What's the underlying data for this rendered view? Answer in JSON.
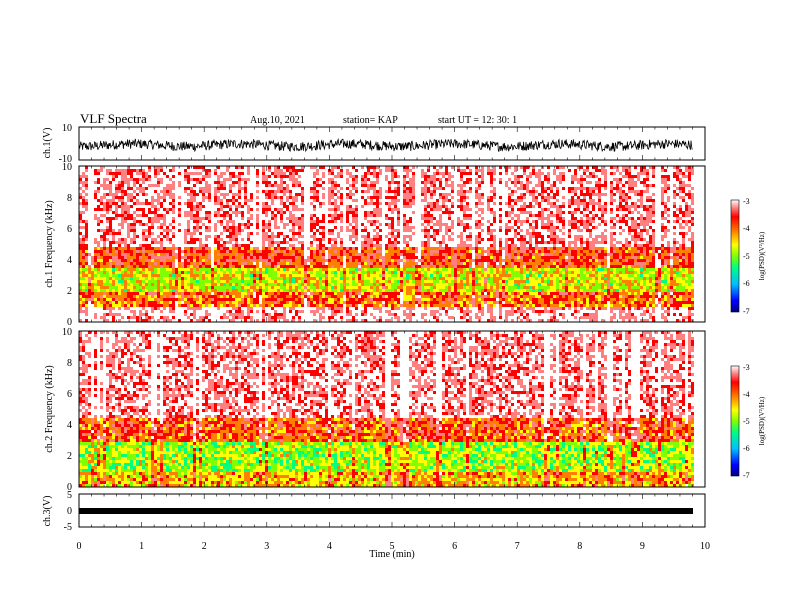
{
  "header": {
    "title": "VLF Spectra",
    "date": "Aug.10, 2021",
    "station": "station= KAP",
    "start": "start  UT =   12: 30: 1"
  },
  "colors": {
    "axis": "#000000",
    "colormap": [
      "#000080",
      "#0000ff",
      "#00c0ff",
      "#00ff80",
      "#80ff00",
      "#ffff00",
      "#ff8000",
      "#ff0000",
      "#ff8080",
      "#ffffff"
    ]
  },
  "chart_data": [
    {
      "type": "line",
      "ylabel": "ch.1(V)",
      "ylim": [
        -10,
        10
      ],
      "yticks": [
        "10",
        "-10"
      ],
      "xlim": [
        0,
        10
      ],
      "note_values": "waveform fluctuating roughly between -3 and 1 V"
    },
    {
      "type": "heatmap",
      "ylabel": "ch.1 Frequency (kHz)",
      "ylim": [
        0,
        10
      ],
      "yticks": [
        "0",
        "2",
        "4",
        "6",
        "8",
        "10"
      ],
      "xlim": [
        0,
        9.8
      ],
      "colorbar": {
        "label": "log(PSD)(V²/Hz)",
        "range": [
          -7,
          -3
        ],
        "ticks": [
          "-3",
          "-4",
          "-5",
          "-6",
          "-7"
        ]
      },
      "bands": [
        {
          "freq": [
            0,
            1
          ],
          "level": -3.4
        },
        {
          "freq": [
            1,
            2
          ],
          "level": -4.3
        },
        {
          "freq": [
            2,
            3.5
          ],
          "level": -4.9
        },
        {
          "freq": [
            3.5,
            5
          ],
          "level": -4.1
        },
        {
          "freq": [
            5,
            10
          ],
          "level": -3.5
        }
      ]
    },
    {
      "type": "heatmap",
      "ylabel": "ch.2 Frequency (kHz)",
      "ylim": [
        0,
        10
      ],
      "yticks": [
        "0",
        "2",
        "4",
        "6",
        "8",
        "10"
      ],
      "xlim": [
        0,
        9.8
      ],
      "colorbar": {
        "label": "log(PSD)(V²/Hz)",
        "range": [
          -7,
          -3
        ],
        "ticks": [
          "-3",
          "-4",
          "-5",
          "-6",
          "-7"
        ]
      },
      "bands": [
        {
          "freq": [
            0,
            1
          ],
          "level": -4.6
        },
        {
          "freq": [
            1,
            3
          ],
          "level": -5.1
        },
        {
          "freq": [
            3,
            4.5
          ],
          "level": -4.2
        },
        {
          "freq": [
            4.5,
            10
          ],
          "level": -3.5
        }
      ]
    },
    {
      "type": "line",
      "ylabel": "ch.3(V)",
      "ylim": [
        -5,
        5
      ],
      "yticks": [
        "5",
        "0",
        "-5"
      ],
      "xlim": [
        0,
        10
      ],
      "xlabel": "Time (min)",
      "xticks": [
        "0",
        "1",
        "2",
        "3",
        "4",
        "5",
        "6",
        "7",
        "8",
        "9",
        "10"
      ],
      "note_values": "flat signal near -1 V"
    }
  ]
}
